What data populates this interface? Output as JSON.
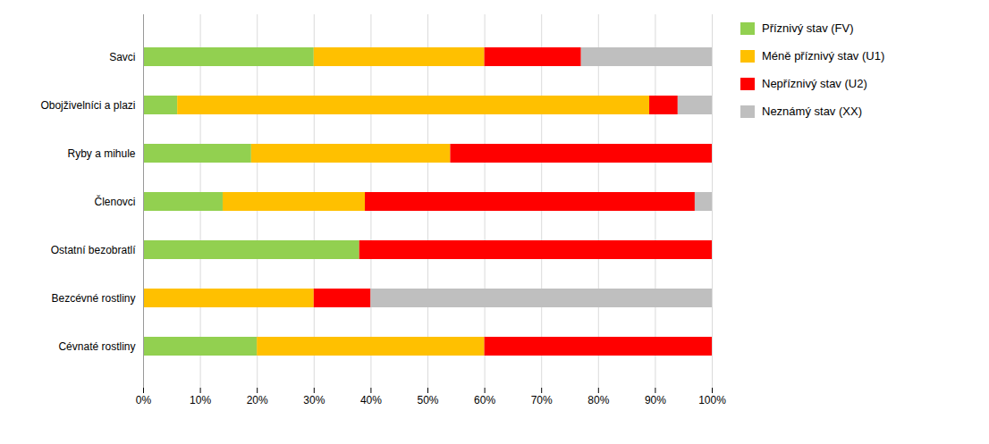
{
  "chart_data": {
    "type": "bar",
    "orientation": "horizontal",
    "stacked": true,
    "categories": [
      "Cévnaté rostliny",
      "Bezcévné rostliny",
      "Ostatní bezobratlí",
      "Členovci",
      "Ryby a mihule",
      "Obojživelníci a plazi",
      "Savci"
    ],
    "series": [
      {
        "name": "Příznivý stav (FV)",
        "color": "#92D050",
        "values": [
          20,
          0,
          38,
          14,
          19,
          6,
          30
        ]
      },
      {
        "name": "Méně příznivý stav (U1)",
        "color": "#FFC000",
        "values": [
          40,
          30,
          0,
          25,
          35,
          83,
          30
        ]
      },
      {
        "name": "Nepříznivý stav (U2)",
        "color": "#FF0000",
        "values": [
          40,
          10,
          62,
          58,
          46,
          5,
          17
        ]
      },
      {
        "name": "Neznámý stav (XX)",
        "color": "#BFBFBF",
        "values": [
          0,
          60,
          0,
          3,
          0,
          6,
          23
        ]
      }
    ],
    "xlim": [
      0,
      100
    ],
    "xticks": [
      {
        "value": 0,
        "label": "0%"
      },
      {
        "value": 10,
        "label": "10%"
      },
      {
        "value": 20,
        "label": "20%"
      },
      {
        "value": 30,
        "label": "30%"
      },
      {
        "value": 40,
        "label": "40%"
      },
      {
        "value": 50,
        "label": "50%"
      },
      {
        "value": 60,
        "label": "60%"
      },
      {
        "value": 70,
        "label": "70%"
      },
      {
        "value": 80,
        "label": "80%"
      },
      {
        "value": 90,
        "label": "90%"
      },
      {
        "value": 100,
        "label": "100%"
      }
    ],
    "grid": true,
    "legend": "right"
  }
}
